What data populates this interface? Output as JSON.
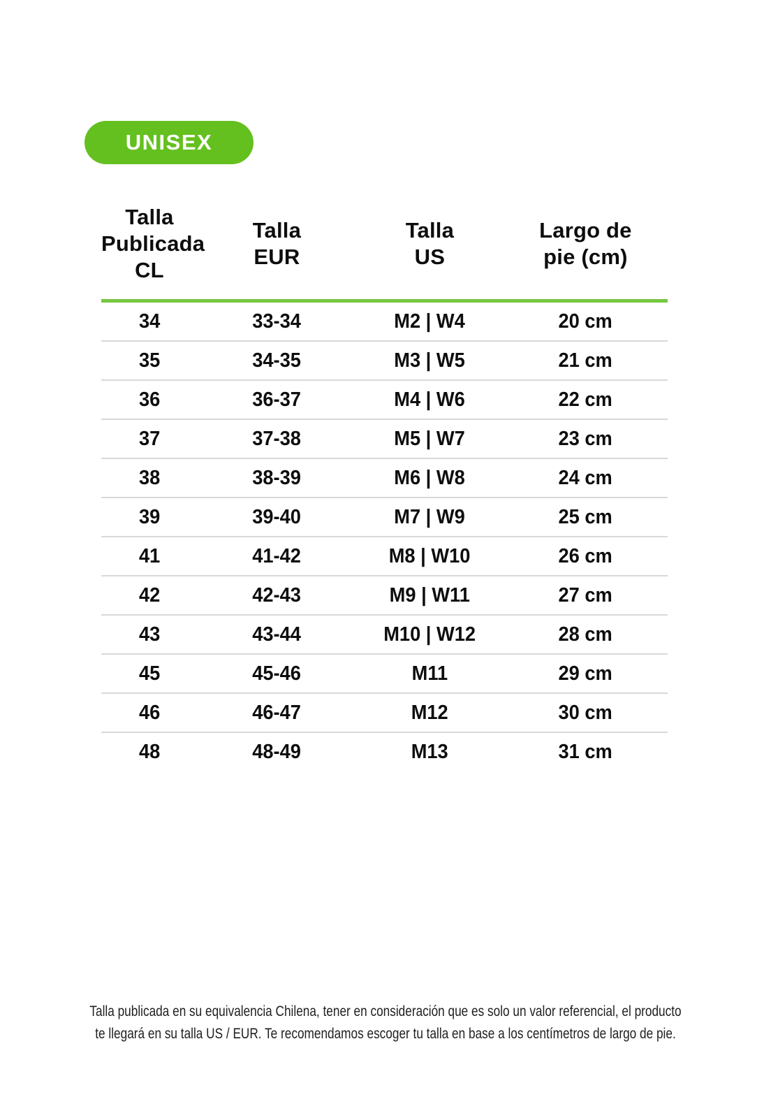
{
  "badge": {
    "label": "UNISEX"
  },
  "table": {
    "header_labels": [
      "Talla\nPublicada\nCL",
      "Talla\nEUR",
      "Talla\nUS",
      "Largo de\npie (cm)"
    ]
  },
  "chart_data": {
    "type": "table",
    "title": "UNISEX",
    "columns": [
      "Talla Publicada CL",
      "Talla EUR",
      "Talla US",
      "Largo de pie (cm)"
    ],
    "rows": [
      [
        "34",
        "33-34",
        "M2 | W4",
        "20 cm"
      ],
      [
        "35",
        "34-35",
        "M3 | W5",
        "21 cm"
      ],
      [
        "36",
        "36-37",
        "M4 | W6",
        "22 cm"
      ],
      [
        "37",
        "37-38",
        "M5 | W7",
        "23 cm"
      ],
      [
        "38",
        "38-39",
        "M6 | W8",
        "24 cm"
      ],
      [
        "39",
        "39-40",
        "M7 | W9",
        "25 cm"
      ],
      [
        "41",
        "41-42",
        "M8 | W10",
        "26 cm"
      ],
      [
        "42",
        "42-43",
        "M9 | W11",
        "27 cm"
      ],
      [
        "43",
        "43-44",
        "M10 | W12",
        "28 cm"
      ],
      [
        "45",
        "45-46",
        "M11",
        "29 cm"
      ],
      [
        "46",
        "46-47",
        "M12",
        "30 cm"
      ],
      [
        "48",
        "48-49",
        "M13",
        "31 cm"
      ]
    ]
  },
  "footer": {
    "lines": [
      "Talla publicada en su equivalencia Chilena, tener en consideración que es solo un valor referencial, el producto",
      "te llegará en su talla US / EUR. Te recomendamos escoger tu talla en base a los centímetros de largo de pie."
    ]
  },
  "colors": {
    "badge_green": "#64c01f",
    "header_rule_green": "#76c841",
    "row_divider_gray": "#d8d8d8",
    "text_black": "#0d0d0d"
  }
}
